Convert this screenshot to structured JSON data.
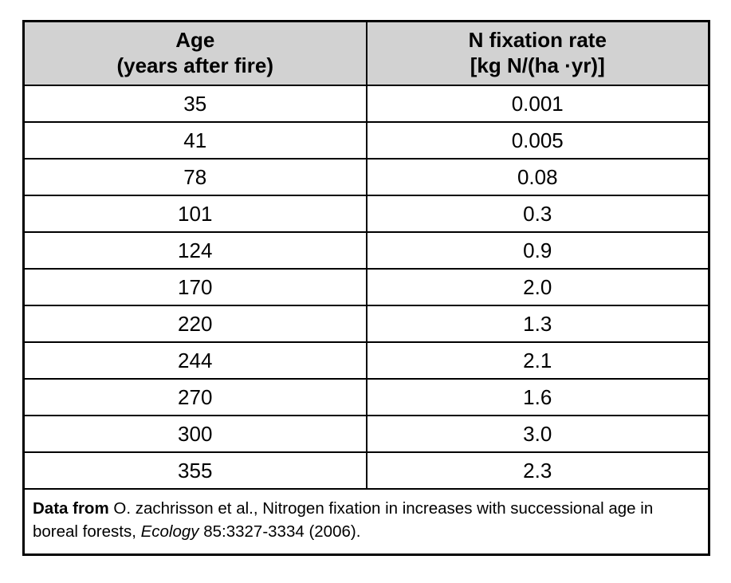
{
  "table": {
    "columns": [
      {
        "line1": "Age",
        "line2": "(years after fire)"
      },
      {
        "line1": "N fixation rate",
        "line2": "[kg N/(ha ·yr)]"
      }
    ],
    "rows": [
      [
        "35",
        "0.001"
      ],
      [
        "41",
        "0.005"
      ],
      [
        "78",
        "0.08"
      ],
      [
        "101",
        "0.3"
      ],
      [
        "124",
        "0.9"
      ],
      [
        "170",
        "2.0"
      ],
      [
        "220",
        "1.3"
      ],
      [
        "244",
        "2.1"
      ],
      [
        "270",
        "1.6"
      ],
      [
        "300",
        "3.0"
      ],
      [
        "355",
        "2.3"
      ]
    ],
    "footer": {
      "segments": [
        {
          "text": "Data from ",
          "bold": true,
          "name": "citation-lead-in"
        },
        {
          "text": "O. zachrisson et al., Nitrogen fixation in increases with successional age in boreal forests, ",
          "name": "citation-body"
        },
        {
          "text": "Ecology",
          "italic": true,
          "name": "citation-journal"
        },
        {
          "text": " 85:3327-3334 (2006).",
          "name": "citation-volume-year"
        }
      ]
    }
  },
  "colors": {
    "header_background": "#d2d2d2",
    "border": "#000000",
    "text": "#000000",
    "page_background": "#ffffff"
  },
  "chart_data": {
    "type": "table",
    "title": "",
    "columns": [
      "Age (years after fire)",
      "N fixation rate [kg N/(ha ·yr)]"
    ],
    "x": [
      35,
      41,
      78,
      101,
      124,
      170,
      220,
      244,
      270,
      300,
      355
    ],
    "values": [
      0.001,
      0.005,
      0.08,
      0.3,
      0.9,
      2.0,
      1.3,
      2.1,
      1.6,
      3.0,
      2.3
    ],
    "xlabel": "Age (years after fire)",
    "ylabel": "N fixation rate [kg N/(ha ·yr)]",
    "annotations": [
      "Data from O. zachrisson et al., Nitrogen fixation in increases with successional age in boreal forests, Ecology 85:3327-3334 (2006)."
    ]
  }
}
